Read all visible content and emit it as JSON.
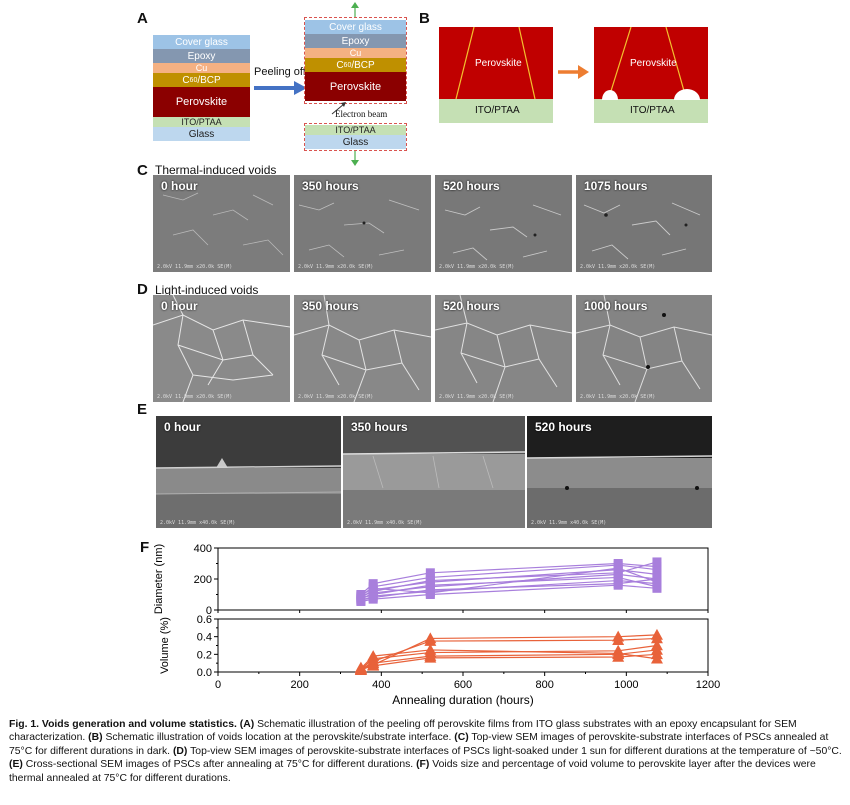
{
  "panel_a": {
    "letter": "A",
    "stack_layers": [
      "Cover glass",
      "Epoxy",
      "Cu",
      "C60/BCP",
      "Perovskite",
      "ITO/PTAA",
      "Glass"
    ],
    "top_layers": [
      "Cover glass",
      "Epoxy",
      "Cu",
      "C60/BCP",
      "Perovskite"
    ],
    "bottom_layers": [
      "ITO/PTAA",
      "Glass"
    ],
    "peel_label": "Peeling off",
    "beam_label": "Electron beam",
    "colors": {
      "cover": "#9dc3e6",
      "epoxy": "#8497b0",
      "cu": "#f4b183",
      "c60": "#bf9000",
      "perovskite": "#8b0000",
      "ito": "#c5e0b4",
      "glass": "#bdd7ee",
      "arrow": "#4472c4"
    }
  },
  "panel_b": {
    "letter": "B",
    "perovskite_label": "Perovskite",
    "substrate_label": "ITO/PTAA",
    "colors": {
      "perovskite": "#c00000",
      "substrate": "#c5e0b4",
      "arrow": "#ed7d31"
    }
  },
  "panel_c": {
    "letter": "C",
    "title": "Thermal-induced voids",
    "images": [
      "0 hour",
      "350 hours",
      "520 hours",
      "1075 hours"
    ],
    "meta": "2.0kV 11.9mm x20.0k SE(M)"
  },
  "panel_d": {
    "letter": "D",
    "title": "Light-induced voids",
    "images": [
      "0 hour",
      "350 hours",
      "520 hours",
      "1000 hours"
    ],
    "meta": "2.0kV 11.9mm x20.0k SE(M)"
  },
  "panel_e": {
    "letter": "E",
    "images": [
      "0 hour",
      "350 hours",
      "520 hours"
    ],
    "meta": "2.0kV 11.9mm x40.0k SE(M)"
  },
  "panel_f": {
    "letter": "F"
  },
  "chart_data": {
    "type": "scatter",
    "title": "",
    "xlabel": "Annealing duration (hours)",
    "xlim": [
      0,
      1200
    ],
    "xticks": [
      "0",
      "200",
      "400",
      "600",
      "800",
      "1000",
      "1200"
    ],
    "subplots": [
      {
        "name": "diameter",
        "ylabel": "Diameter (nm)",
        "ylim": [
          0,
          400
        ],
        "yticks": [
          "0",
          "200",
          "400"
        ],
        "marker": "square",
        "color": "#a87fdc",
        "x": [
          350,
          380,
          520,
          980,
          1075
        ],
        "series": [
          {
            "values": [
              55,
              70,
              100,
              160,
              140
            ]
          },
          {
            "values": [
              60,
              90,
              120,
              190,
              170
            ]
          },
          {
            "values": [
              70,
              110,
              150,
              230,
              200
            ]
          },
          {
            "values": [
              80,
              130,
              180,
              260,
              230
            ]
          },
          {
            "values": [
              90,
              150,
              210,
              290,
              260
            ]
          },
          {
            "values": [
              100,
              170,
              240,
              300,
              280
            ]
          },
          {
            "values": [
              65,
              80,
              130,
              170,
              200
            ]
          },
          {
            "values": [
              75,
              100,
              160,
              210,
              150
            ]
          },
          {
            "values": [
              85,
              120,
              190,
              240,
              310
            ]
          },
          {
            "values": [
              95,
              140,
              110,
              270,
              180
            ]
          }
        ]
      },
      {
        "name": "volume",
        "ylabel": "Volume (%)",
        "ylim": [
          0,
          0.6
        ],
        "yticks": [
          "0.0",
          "0.2",
          "0.4",
          "0.6"
        ],
        "marker": "triangle",
        "color": "#e8623a",
        "x": [
          350,
          380,
          520,
          980,
          1075
        ],
        "series": [
          {
            "values": [
              0.02,
              0.08,
              0.38,
              0.4,
              0.42
            ]
          },
          {
            "values": [
              0.02,
              0.12,
              0.35,
              0.36,
              0.38
            ]
          },
          {
            "values": [
              0.03,
              0.15,
              0.22,
              0.24,
              0.3
            ]
          },
          {
            "values": [
              0.03,
              0.1,
              0.18,
              0.2,
              0.25
            ]
          },
          {
            "values": [
              0.04,
              0.18,
              0.25,
              0.21,
              0.15
            ]
          },
          {
            "values": [
              0.05,
              0.07,
              0.16,
              0.17,
              0.2
            ]
          }
        ]
      }
    ]
  },
  "caption": {
    "title": "Fig. 1. Voids generation and volume statistics.",
    "segments": [
      {
        "label": "(A)",
        "text": " Schematic illustration of the peeling off perovskite films from ITO glass substrates with an epoxy encapsulant for SEM characterization. "
      },
      {
        "label": "(B)",
        "text": " Schematic illustration of voids location at the perovskite/substrate interface. "
      },
      {
        "label": "(C)",
        "text": " Top-view SEM images of perovskite-substrate interfaces of PSCs annealed at 75°C for different durations in dark. "
      },
      {
        "label": "(D)",
        "text": " Top-view SEM images of perovskite-substrate interfaces of PSCs light-soaked under 1 sun for different durations at the temperature of ~50°C. "
      },
      {
        "label": "(E)",
        "text": " Cross-sectional SEM images of PSCs after annealing at 75°C for different durations. "
      },
      {
        "label": "(F)",
        "text": " Voids size and percentage of void volume to perovskite layer after the devices were thermal annealed at 75°C for different durations."
      }
    ]
  }
}
